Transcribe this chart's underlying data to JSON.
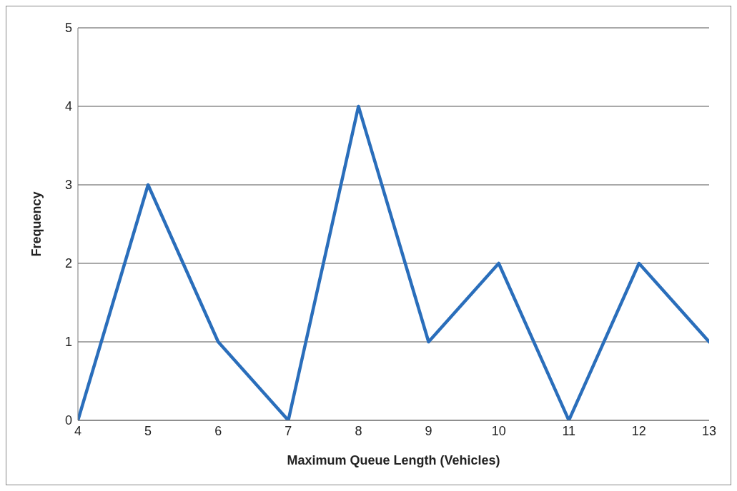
{
  "chart_data": {
    "type": "line",
    "xlabel": "Maximum Queue Length (Vehicles)",
    "ylabel": "Frequency",
    "x": [
      4,
      5,
      6,
      7,
      8,
      9,
      10,
      11,
      12,
      13
    ],
    "series": [
      {
        "color": "#2a6ebb",
        "values": [
          0,
          3,
          1,
          0,
          4,
          1,
          2,
          0,
          2,
          1
        ]
      }
    ],
    "xlim": [
      4,
      13
    ],
    "xticks": [
      4,
      5,
      6,
      7,
      8,
      9,
      10,
      11,
      12,
      13
    ],
    "ylim": [
      0,
      5
    ],
    "yticks": [
      0,
      1,
      2,
      3,
      4,
      5
    ],
    "grid": "y",
    "legend": false,
    "marker": "none",
    "line_style": "solid"
  }
}
